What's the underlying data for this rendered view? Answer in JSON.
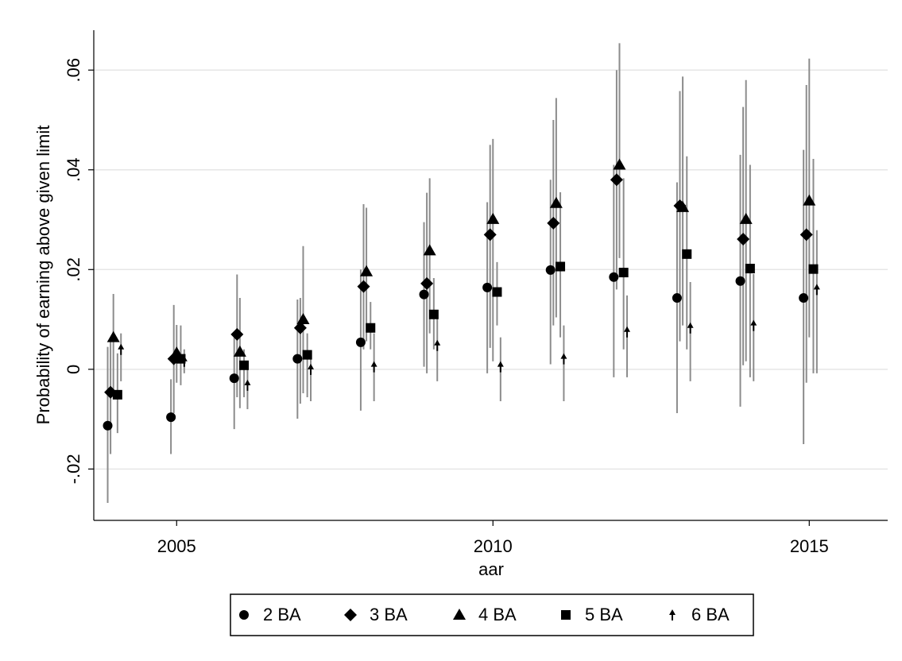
{
  "chart_data": {
    "type": "scatter",
    "x_label": "aar",
    "y_label": "Probability of earning above given limit",
    "x": [
      2004,
      2005,
      2006,
      2007,
      2008,
      2009,
      2010,
      2011,
      2012,
      2013,
      2014,
      2015
    ],
    "xlim": [
      2003.69,
      2016.24
    ],
    "ylim": [
      -0.0303,
      0.068
    ],
    "xticks": [
      2005,
      2010,
      2015
    ],
    "yticks": [
      {
        "value": -0.02,
        "label": "-.02"
      },
      0,
      {
        "value": 0.02,
        "label": ".02"
      },
      {
        "value": 0.04,
        "label": ".04"
      },
      {
        "value": 0.06,
        "label": ".06"
      }
    ],
    "grid": true,
    "ci_color": "#8c8c8c",
    "legend": "bottom",
    "series": [
      {
        "name": "2 BA",
        "color": "#000000",
        "marker": "circle",
        "values": [
          -0.0113,
          -0.0096,
          -0.0018,
          0.0021,
          0.0054,
          0.015,
          0.0164,
          0.0199,
          0.0185,
          0.0143,
          0.0177,
          0.0143
        ],
        "low": [
          -0.0268,
          -0.017,
          -0.012,
          -0.0099,
          -0.0083,
          0.0005,
          -0.0008,
          0.001,
          -0.0016,
          -0.0088,
          -0.0075,
          -0.015
        ],
        "high": [
          0.0045,
          -0.002,
          0.0064,
          0.014,
          0.02,
          0.0295,
          0.0335,
          0.038,
          0.041,
          0.0375,
          0.043,
          0.044
        ]
      },
      {
        "name": "3 BA",
        "color": "#000000",
        "marker": "diamond",
        "values": [
          -0.0046,
          0.0021,
          0.007,
          0.0083,
          0.0166,
          0.0172,
          0.027,
          0.0293,
          0.038,
          0.0328,
          0.0261,
          0.027
        ],
        "low": [
          -0.017,
          -0.0088,
          -0.0056,
          -0.0069,
          0.004,
          -0.0008,
          0.0043,
          0.0088,
          0.016,
          0.0056,
          0.0008,
          -0.0027
        ],
        "high": [
          0.0056,
          0.0129,
          0.019,
          0.0143,
          0.0331,
          0.0354,
          0.045,
          0.05,
          0.06,
          0.0558,
          0.0526,
          0.057
        ]
      },
      {
        "name": "4 BA",
        "color": "#000000",
        "marker": "triangle",
        "values": [
          0.0064,
          0.0033,
          0.0035,
          0.01,
          0.0196,
          0.0238,
          0.0301,
          0.0333,
          0.041,
          0.0325,
          0.0301,
          0.0338
        ],
        "low": [
          -0.0056,
          -0.0027,
          -0.0078,
          -0.0048,
          0.0056,
          0.0072,
          0.0016,
          0.0104,
          0.0223,
          0.0088,
          0.0016,
          0.0064
        ],
        "high": [
          0.0151,
          0.0089,
          0.0143,
          0.0247,
          0.0324,
          0.0383,
          0.0462,
          0.0544,
          0.0654,
          0.0587,
          0.058,
          0.0623
        ]
      },
      {
        "name": "5 BA",
        "color": "#000000",
        "marker": "square",
        "values": [
          -0.0051,
          0.0021,
          0.0008,
          0.0029,
          0.0083,
          0.011,
          0.0155,
          0.0206,
          0.0194,
          0.0231,
          0.0202,
          0.0201
        ],
        "low": [
          -0.0128,
          -0.0032,
          -0.0056,
          -0.0056,
          0.004,
          0.004,
          0.0088,
          0.0064,
          0.004,
          0.004,
          -0.0016,
          -0.0008
        ],
        "high": [
          0.0032,
          0.0088,
          0.004,
          0.0072,
          0.0135,
          0.0183,
          0.0215,
          0.0355,
          0.0383,
          0.0427,
          0.041,
          0.0422
        ]
      },
      {
        "name": "6 BA",
        "color": "#000000",
        "marker": "arrow",
        "values": [
          0.004,
          0.0016,
          -0.0032,
          0,
          0.0005,
          0.0048,
          0.0005,
          0.0021,
          0.0075,
          0.0083,
          0.0088,
          0.016
        ],
        "low": [
          -0.0024,
          -0.0008,
          -0.008,
          -0.0064,
          -0.0064,
          -0.0024,
          -0.0064,
          -0.0064,
          -0.0016,
          -0.0024,
          -0.0024,
          -0.0008
        ],
        "high": [
          0.0072,
          0.004,
          0.0005,
          0.0032,
          0.0072,
          0.0104,
          0.0064,
          0.0088,
          0.0148,
          0.0175,
          0.0191,
          0.0279
        ]
      }
    ]
  }
}
